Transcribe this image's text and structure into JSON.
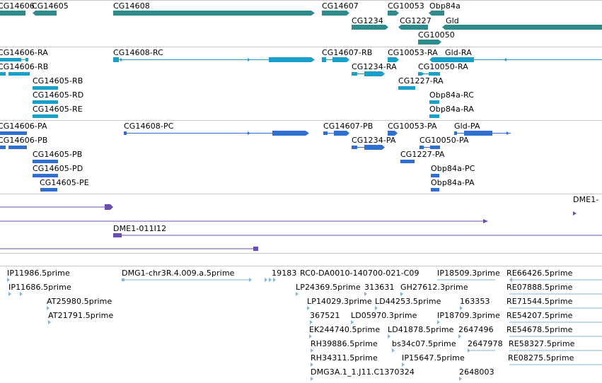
{
  "gene_track": {
    "genes": [
      "CG14606",
      "CG14605",
      "CG14608",
      "CG14607",
      "CG10053",
      "Obp84a",
      "CG1234",
      "CG1227",
      "Gld",
      "CG10050"
    ]
  },
  "transcript_track": {
    "transcripts": [
      "CG14606-RA",
      "CG14606-RB",
      "CG14605-RB",
      "CG14605-RD",
      "CG14605-RE",
      "CG14608-RC",
      "CG14607-RB",
      "CG10053-RA",
      "Gld-RA",
      "CG1234-RA",
      "CG10050-RA",
      "CG1227-RA",
      "Obp84a-RC",
      "Obp84a-RA"
    ]
  },
  "protein_track": {
    "proteins": [
      "CG14606-PA",
      "CG14606-PB",
      "CG14605-PB",
      "CG14605-PD",
      "CG14605-PE",
      "CG14608-PC",
      "CG14607-PB",
      "CG10053-PA",
      "Gld-PA",
      "CG1234-PA",
      "CG10050-PA",
      "CG1227-PA",
      "Obp84a-PC",
      "Obp84a-PA"
    ]
  },
  "clone_track": {
    "clones": [
      "DME1-",
      "DME1-011I12"
    ]
  },
  "est_track": {
    "ests": [
      "IP11986.5prime",
      "IP11686.5prime",
      "AT25980.5prime",
      "AT21791.5prime",
      "DMG1-chr3R.4.009.a.5prime",
      "19183",
      "RC0-DA0010-140700-021-C09",
      "IP18509.3prime",
      "RE66426.5prime",
      "LP24369.5prime",
      "313631",
      "GH27612.3prime",
      "RE07888.5prime",
      "LP14029.3prime",
      "LD44253.5prime",
      "163353",
      "RE71544.5prime",
      "367521",
      "LD05970.3prime",
      "IP18709.3prime",
      "RE54207.5prime",
      "EK244740.5prime",
      "LD41878.5prime",
      "2647496",
      "RE54678.5prime",
      "RH39886.5prime",
      "bs34c07.5prime",
      "2647978",
      "RE58327.5prime",
      "RH34311.5prime",
      "IP15647.5prime",
      "RE08275.5prime",
      "DMG3A.1_1.J11.C1370324",
      "2648003"
    ]
  },
  "colors": {
    "gene": "#2e8b8b",
    "transcript": "#1aa0c8",
    "protein": "#2f6fd0",
    "clone": "#6a4fb0",
    "est": "#86b4da",
    "separator": "#c8c8c8"
  }
}
